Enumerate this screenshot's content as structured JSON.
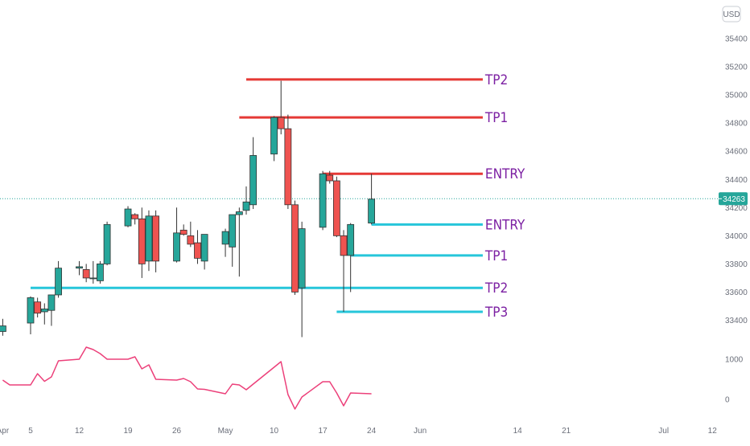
{
  "chart_data": {
    "type": "candlestick",
    "currency": "USD",
    "x_tick_labels": [
      "Apr",
      "5",
      "12",
      "19",
      "26",
      "May",
      "10",
      "17",
      "24",
      "Jun",
      "14",
      "21",
      "Jul",
      "12"
    ],
    "x_tick_dates": [
      "2021-04-01",
      "2021-04-05",
      "2021-04-12",
      "2021-04-19",
      "2021-04-26",
      "2021-05-03",
      "2021-05-10",
      "2021-05-17",
      "2021-05-24",
      "2021-05-31",
      "2021-06-14",
      "2021-06-21",
      "2021-07-05",
      "2021-07-12"
    ],
    "y_ticks": [
      33400,
      33600,
      33800,
      34000,
      34200,
      34400,
      34600,
      34800,
      35000,
      35200,
      35400
    ],
    "y_range": [
      33300,
      35520
    ],
    "last_price": "34263",
    "last_price_value": 34263,
    "colors": {
      "up": "#26a69a",
      "down": "#ef5350",
      "resistance": "#e53935",
      "support": "#26c6da",
      "oscillator": "#ec407a",
      "label": "#7b1fa2",
      "price_tag": "#26a69a"
    },
    "candles": [
      {
        "date": "2021-04-01",
        "open": 33320,
        "high": 33410,
        "low": 33290,
        "close": 33360
      },
      {
        "date": "2021-04-05",
        "open": 33380,
        "high": 33570,
        "low": 33300,
        "close": 33560
      },
      {
        "date": "2021-04-06",
        "open": 33530,
        "high": 33560,
        "low": 33420,
        "close": 33450
      },
      {
        "date": "2021-04-07",
        "open": 33460,
        "high": 33520,
        "low": 33370,
        "close": 33480
      },
      {
        "date": "2021-04-08",
        "open": 33470,
        "high": 33580,
        "low": 33360,
        "close": 33580
      },
      {
        "date": "2021-04-09",
        "open": 33580,
        "high": 33820,
        "low": 33560,
        "close": 33770
      },
      {
        "date": "2021-04-12",
        "open": 33770,
        "high": 33820,
        "low": 33720,
        "close": 33780
      },
      {
        "date": "2021-04-13",
        "open": 33760,
        "high": 33800,
        "low": 33670,
        "close": 33700
      },
      {
        "date": "2021-04-14",
        "open": 33700,
        "high": 33820,
        "low": 33660,
        "close": 33700
      },
      {
        "date": "2021-04-15",
        "open": 33680,
        "high": 33820,
        "low": 33660,
        "close": 33800
      },
      {
        "date": "2021-04-16",
        "open": 33800,
        "high": 34100,
        "low": 33790,
        "close": 34080
      },
      {
        "date": "2021-04-19",
        "open": 34070,
        "high": 34210,
        "low": 34060,
        "close": 34190
      },
      {
        "date": "2021-04-20",
        "open": 34150,
        "high": 34160,
        "low": 34080,
        "close": 34120
      },
      {
        "date": "2021-04-21",
        "open": 34120,
        "high": 34200,
        "low": 33700,
        "close": 33800
      },
      {
        "date": "2021-04-22",
        "open": 33820,
        "high": 34180,
        "low": 33750,
        "close": 34140
      },
      {
        "date": "2021-04-23",
        "open": 34140,
        "high": 34180,
        "low": 33740,
        "close": 33820
      },
      {
        "date": "2021-04-26",
        "open": 33820,
        "high": 34200,
        "low": 33810,
        "close": 34020
      },
      {
        "date": "2021-04-27",
        "open": 34040,
        "high": 34080,
        "low": 34000,
        "close": 34010
      },
      {
        "date": "2021-04-28",
        "open": 34000,
        "high": 34100,
        "low": 33920,
        "close": 33940
      },
      {
        "date": "2021-04-29",
        "open": 33950,
        "high": 34040,
        "low": 33800,
        "close": 33840
      },
      {
        "date": "2021-04-30",
        "open": 33820,
        "high": 34010,
        "low": 33760,
        "close": 34010
      },
      {
        "date": "2021-05-03",
        "open": 33940,
        "high": 34050,
        "low": 33850,
        "close": 34030
      },
      {
        "date": "2021-05-04",
        "open": 33920,
        "high": 34150,
        "low": 33780,
        "close": 34150
      },
      {
        "date": "2021-05-05",
        "open": 34150,
        "high": 34200,
        "low": 33710,
        "close": 34170
      },
      {
        "date": "2021-05-06",
        "open": 34180,
        "high": 34350,
        "low": 34150,
        "close": 34240
      },
      {
        "date": "2021-05-07",
        "open": 34220,
        "high": 34700,
        "low": 34190,
        "close": 34570
      },
      {
        "date": "2021-05-10",
        "open": 34580,
        "high": 34850,
        "low": 34530,
        "close": 34840
      },
      {
        "date": "2021-05-11",
        "open": 34840,
        "high": 35100,
        "low": 34720,
        "close": 34760
      },
      {
        "date": "2021-05-12",
        "open": 34760,
        "high": 34860,
        "low": 34190,
        "close": 34220
      },
      {
        "date": "2021-05-13",
        "open": 34220,
        "high": 34250,
        "low": 33580,
        "close": 33600
      },
      {
        "date": "2021-05-14",
        "open": 33630,
        "high": 34100,
        "low": 33280,
        "close": 34050
      },
      {
        "date": "2021-05-17",
        "open": 34060,
        "high": 34460,
        "low": 34040,
        "close": 34440
      },
      {
        "date": "2021-05-18",
        "open": 34430,
        "high": 34460,
        "low": 34370,
        "close": 34390
      },
      {
        "date": "2021-05-19",
        "open": 34390,
        "high": 34420,
        "low": 33990,
        "close": 34000
      },
      {
        "date": "2021-05-20",
        "open": 34000,
        "high": 34040,
        "low": 33460,
        "close": 33860
      },
      {
        "date": "2021-05-21",
        "open": 33860,
        "high": 34090,
        "low": 33600,
        "close": 34080
      },
      {
        "date": "2021-05-24",
        "open": 34090,
        "high": 34440,
        "low": 34080,
        "close": 34260
      }
    ],
    "levels": [
      {
        "label": "TP2",
        "value": 35110,
        "color": "red",
        "from": "2021-05-06",
        "to": "2021-06-09"
      },
      {
        "label": "TP1",
        "value": 34840,
        "color": "red",
        "from": "2021-05-05",
        "to": "2021-06-09"
      },
      {
        "label": "ENTRY",
        "value": 34440,
        "color": "red",
        "from": "2021-05-17",
        "to": "2021-06-09"
      },
      {
        "label": "ENTRY",
        "value": 34080,
        "color": "cyan",
        "from": "2021-05-24",
        "to": "2021-06-09"
      },
      {
        "label": "TP1",
        "value": 33860,
        "color": "cyan",
        "from": "2021-05-21",
        "to": "2021-06-09"
      },
      {
        "label": "TP2",
        "value": 33630,
        "color": "cyan",
        "from": "2021-04-05",
        "to": "2021-06-09"
      },
      {
        "label": "TP3",
        "value": 33460,
        "color": "cyan",
        "from": "2021-05-19",
        "to": "2021-06-09"
      }
    ],
    "oscillator": {
      "y_ticks": [
        0,
        1000
      ],
      "y_range": [
        -300,
        1400
      ],
      "values": [
        {
          "date": "2021-04-01",
          "value": 480
        },
        {
          "date": "2021-04-02",
          "value": 360
        },
        {
          "date": "2021-04-05",
          "value": 360
        },
        {
          "date": "2021-04-06",
          "value": 640
        },
        {
          "date": "2021-04-07",
          "value": 450
        },
        {
          "date": "2021-04-08",
          "value": 560
        },
        {
          "date": "2021-04-09",
          "value": 960
        },
        {
          "date": "2021-04-12",
          "value": 1000
        },
        {
          "date": "2021-04-13",
          "value": 1300
        },
        {
          "date": "2021-04-14",
          "value": 1240
        },
        {
          "date": "2021-04-15",
          "value": 1140
        },
        {
          "date": "2021-04-16",
          "value": 1000
        },
        {
          "date": "2021-04-19",
          "value": 1000
        },
        {
          "date": "2021-04-20",
          "value": 1060
        },
        {
          "date": "2021-04-21",
          "value": 760
        },
        {
          "date": "2021-04-22",
          "value": 860
        },
        {
          "date": "2021-04-23",
          "value": 500
        },
        {
          "date": "2021-04-26",
          "value": 480
        },
        {
          "date": "2021-04-27",
          "value": 520
        },
        {
          "date": "2021-04-28",
          "value": 440
        },
        {
          "date": "2021-04-29",
          "value": 260
        },
        {
          "date": "2021-04-30",
          "value": 250
        },
        {
          "date": "2021-05-03",
          "value": 140
        },
        {
          "date": "2021-05-04",
          "value": 380
        },
        {
          "date": "2021-05-05",
          "value": 360
        },
        {
          "date": "2021-05-06",
          "value": 240
        },
        {
          "date": "2021-05-07",
          "value": 380
        },
        {
          "date": "2021-05-10",
          "value": 800
        },
        {
          "date": "2021-05-11",
          "value": 940
        },
        {
          "date": "2021-05-12",
          "value": 120
        },
        {
          "date": "2021-05-13",
          "value": -240
        },
        {
          "date": "2021-05-14",
          "value": 60
        },
        {
          "date": "2021-05-17",
          "value": 440
        },
        {
          "date": "2021-05-18",
          "value": 440
        },
        {
          "date": "2021-05-19",
          "value": 160
        },
        {
          "date": "2021-05-20",
          "value": -160
        },
        {
          "date": "2021-05-21",
          "value": 160
        },
        {
          "date": "2021-05-24",
          "value": 140
        }
      ]
    }
  }
}
